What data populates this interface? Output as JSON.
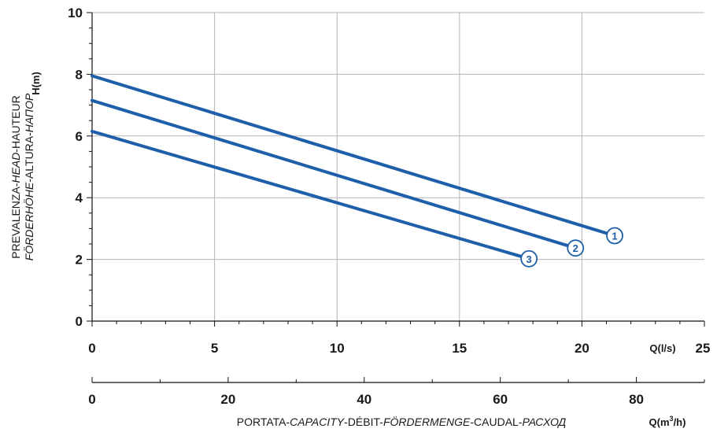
{
  "chart_data": {
    "type": "line",
    "x_unit_label": "Q(l/s)",
    "x2_unit_label": "Q(m³/h)",
    "x2_unit_parts": {
      "prefix": "Q(m",
      "sup": "3",
      "suffix": "/h)"
    },
    "y_unit_label": "H(m)",
    "x_ticks": [
      0,
      5,
      10,
      15,
      20,
      25
    ],
    "x2_ticks": [
      0,
      20,
      40,
      60,
      80
    ],
    "y_ticks": [
      0,
      2,
      4,
      6,
      8,
      10
    ],
    "xlim": [
      0,
      25
    ],
    "x2lim": [
      0,
      90
    ],
    "ylim": [
      0,
      10
    ],
    "grid": true,
    "y_title_line1": [
      {
        "text": "PREVALENZA-",
        "italic": false
      },
      {
        "text": "HEAD",
        "italic": true
      },
      {
        "text": "-HAUTEUR",
        "italic": false
      }
    ],
    "y_title_line2": [
      {
        "text": "FÖRDERHÖHE",
        "italic": true
      },
      {
        "text": "-ALTURA-",
        "italic": false
      },
      {
        "text": "НАПОР",
        "italic": true
      }
    ],
    "x_title": [
      {
        "text": "PORTATA-",
        "italic": false
      },
      {
        "text": "CAPACITY",
        "italic": true
      },
      {
        "text": "-DÉBIT-",
        "italic": false
      },
      {
        "text": "FÖRDERMENGE",
        "italic": true
      },
      {
        "text": "-CAUDAL-",
        "italic": false
      },
      {
        "text": "РАСХОД",
        "italic": true
      }
    ],
    "series": [
      {
        "name": "1",
        "x": [
          0,
          21
        ],
        "y": [
          7.95,
          2.85
        ]
      },
      {
        "name": "2",
        "x": [
          0,
          19.4
        ],
        "y": [
          7.15,
          2.45
        ]
      },
      {
        "name": "3",
        "x": [
          0,
          17.5
        ],
        "y": [
          6.15,
          2.1
        ]
      }
    ],
    "line_color": "#1d5fa8",
    "grid_color": "#b5b5b5"
  }
}
